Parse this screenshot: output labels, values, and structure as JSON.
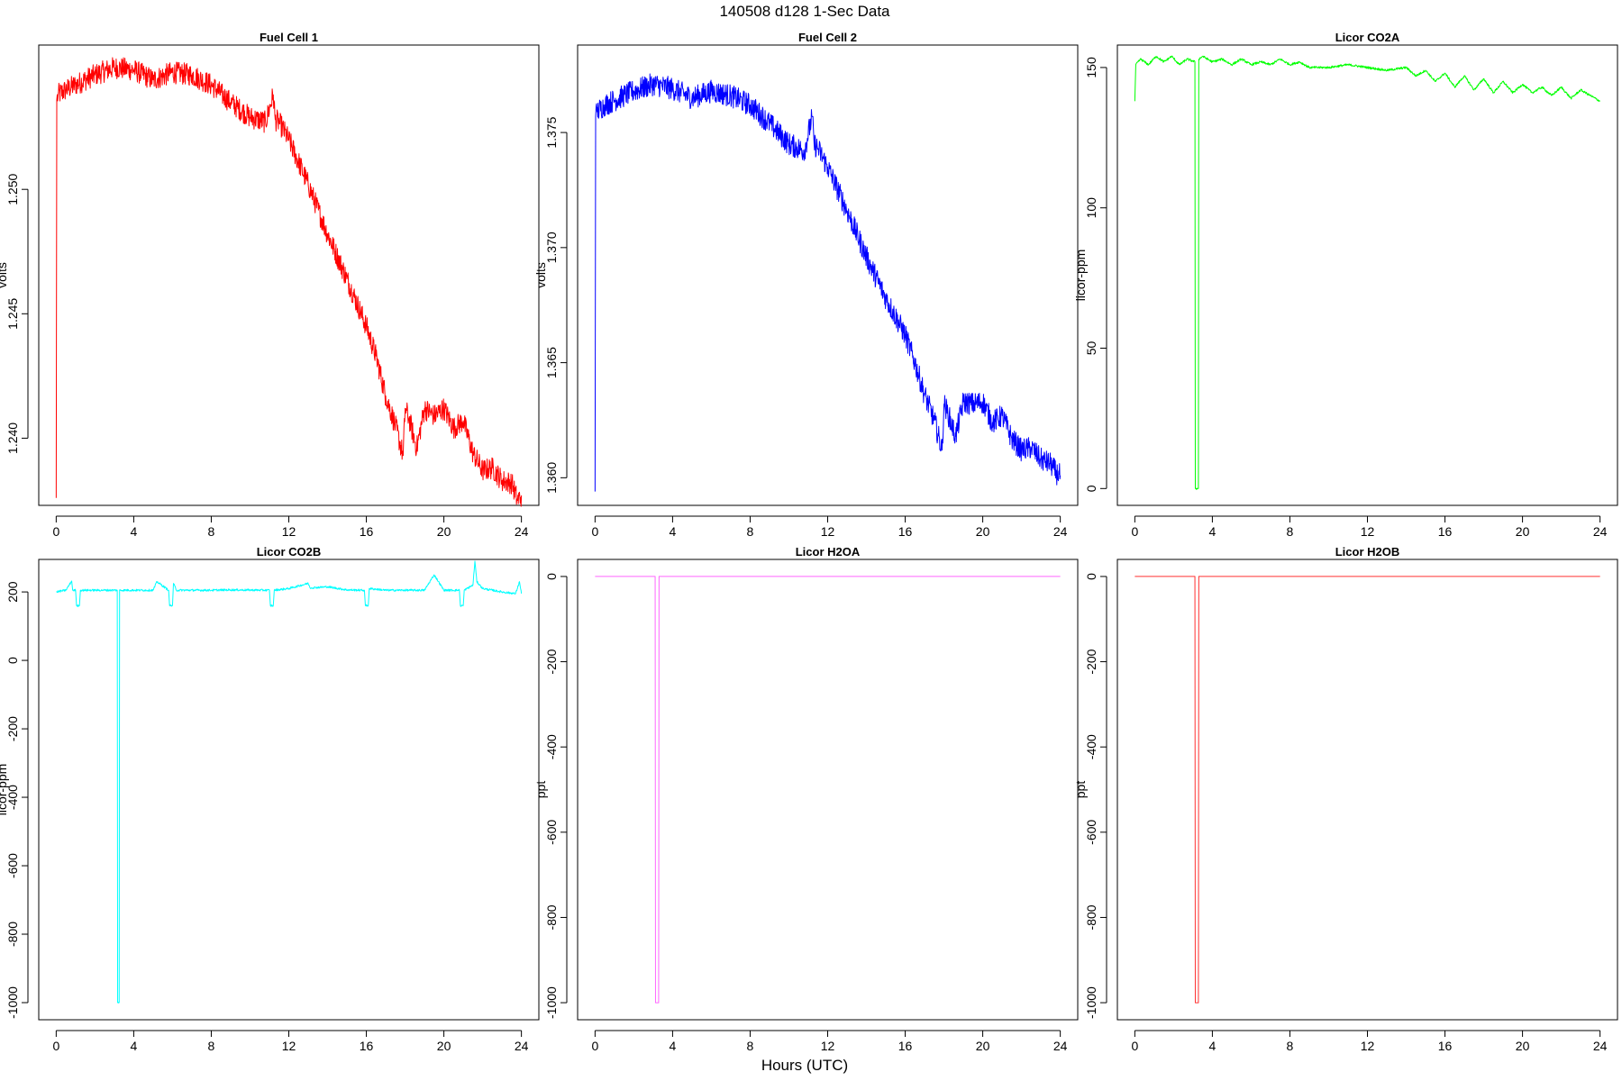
{
  "figure": {
    "title": "140508   d128   1-Sec Data",
    "xlabel": "Hours (UTC)"
  },
  "chart_data": [
    {
      "type": "line",
      "title": "Fuel Cell 1",
      "xlabel": "",
      "ylabel": "volts",
      "color": "#ff0000",
      "xlim": [
        -0.9,
        24.9
      ],
      "ylim": [
        1.2373,
        1.2558
      ],
      "xticks": [
        0,
        4,
        8,
        12,
        16,
        20,
        24
      ],
      "xtick_labels": [
        "0",
        "4",
        "8",
        "12",
        "16",
        "20",
        "24"
      ],
      "yticks": [
        1.24,
        1.245,
        1.25
      ],
      "ytick_labels": [
        "1.240",
        "1.245",
        "1.250"
      ],
      "series": [
        {
          "x": [
            0,
            0.03,
            0.1,
            0.5,
            1,
            2,
            3,
            4,
            5,
            6,
            7,
            8,
            9,
            10,
            10.8,
            11.2,
            11.3,
            11.5,
            12,
            13,
            14,
            15,
            16,
            16.5,
            17,
            17.5,
            17.9,
            18,
            18.2,
            18.6,
            19,
            19.5,
            20,
            20.5,
            21,
            21.5,
            22,
            22.5,
            23,
            23.5,
            23.8,
            24
          ],
          "y": [
            1.2376,
            1.2536,
            1.2538,
            1.254,
            1.2542,
            1.2546,
            1.2549,
            1.2548,
            1.2544,
            1.2547,
            1.2546,
            1.2542,
            1.2535,
            1.2529,
            1.2527,
            1.2538,
            1.2528,
            1.2527,
            1.252,
            1.2502,
            1.2482,
            1.2464,
            1.2445,
            1.2433,
            1.2417,
            1.2405,
            1.2393,
            1.2412,
            1.2408,
            1.2396,
            1.2412,
            1.2409,
            1.2412,
            1.2404,
            1.2407,
            1.2394,
            1.2387,
            1.2388,
            1.2383,
            1.2382,
            1.2375,
            1.2377
          ],
          "noise": 0.00045
        }
      ]
    },
    {
      "type": "line",
      "title": "Fuel Cell 2",
      "xlabel": "",
      "ylabel": "volts",
      "color": "#0000ff",
      "xlim": [
        -0.9,
        24.9
      ],
      "ylim": [
        1.3588,
        1.3788
      ],
      "xticks": [
        0,
        4,
        8,
        12,
        16,
        20,
        24
      ],
      "xtick_labels": [
        "0",
        "4",
        "8",
        "12",
        "16",
        "20",
        "24"
      ],
      "yticks": [
        1.36,
        1.365,
        1.37,
        1.375
      ],
      "ytick_labels": [
        "1.360",
        "1.365",
        "1.370",
        "1.375"
      ],
      "series": [
        {
          "x": [
            0,
            0.03,
            0.1,
            0.5,
            1,
            2,
            3,
            4,
            5,
            6,
            7,
            8,
            9,
            10,
            10.8,
            11.2,
            11.3,
            11.5,
            12,
            13,
            14,
            15,
            16,
            16.5,
            17,
            17.5,
            17.9,
            18,
            18.2,
            18.6,
            19,
            19.5,
            20,
            20.5,
            21,
            21.5,
            22,
            22.5,
            23,
            23.5,
            23.8,
            24
          ],
          "y": [
            1.3594,
            1.3757,
            1.3759,
            1.3762,
            1.3764,
            1.3768,
            1.3771,
            1.3769,
            1.3765,
            1.3768,
            1.3766,
            1.3762,
            1.3754,
            1.3745,
            1.3742,
            1.3757,
            1.3745,
            1.3743,
            1.3735,
            1.3716,
            1.3696,
            1.3678,
            1.3662,
            1.365,
            1.3636,
            1.3625,
            1.3612,
            1.3632,
            1.3628,
            1.3618,
            1.3633,
            1.3632,
            1.3633,
            1.3624,
            1.3627,
            1.3617,
            1.3612,
            1.3613,
            1.3608,
            1.3606,
            1.3602,
            1.3601
          ],
          "noise": 0.0005
        }
      ]
    },
    {
      "type": "line",
      "title": "Licor CO2A",
      "xlabel": "",
      "ylabel": "licor-ppm",
      "color": "#00ff00",
      "xlim": [
        -0.9,
        24.9
      ],
      "ylim": [
        -6,
        158
      ],
      "xticks": [
        0,
        4,
        8,
        12,
        16,
        20,
        24
      ],
      "xtick_labels": [
        "0",
        "4",
        "8",
        "12",
        "16",
        "20",
        "24"
      ],
      "yticks": [
        0,
        50,
        100,
        150
      ],
      "ytick_labels": [
        "0",
        "50",
        "100",
        "150"
      ],
      "series": [
        {
          "x": [
            0,
            0.05,
            0.3,
            0.7,
            1.1,
            1.5,
            1.9,
            2.3,
            2.7,
            3.1,
            3.12,
            3.15,
            3.25,
            3.28,
            3.3,
            3.5,
            4,
            4.5,
            5,
            5.5,
            6,
            6.5,
            7,
            7.5,
            8,
            8.5,
            9,
            10,
            11,
            12,
            13,
            14,
            14.5,
            15,
            15.5,
            16,
            16.5,
            17,
            17.5,
            18,
            18.5,
            19,
            19.5,
            20,
            20.5,
            21,
            21.5,
            22,
            22.5,
            23,
            23.5,
            24
          ],
          "y": [
            138,
            151,
            153,
            151,
            154,
            152,
            154,
            151,
            153,
            152,
            0,
            0,
            0,
            0,
            153,
            154,
            152,
            153,
            151,
            153,
            151,
            152,
            151,
            153,
            151,
            152,
            150,
            150,
            151,
            150,
            149,
            150,
            147,
            149,
            145,
            148,
            143,
            147,
            142,
            146,
            141,
            145,
            141,
            144,
            141,
            143,
            140,
            143,
            139,
            142,
            140,
            138
          ],
          "noise": 0.4
        }
      ]
    },
    {
      "type": "line",
      "title": "Licor CO2B",
      "xlabel": "",
      "ylabel": "licor-ppm",
      "color": "#00ffff",
      "xlim": [
        -0.9,
        24.9
      ],
      "ylim": [
        -1050,
        295
      ],
      "xticks": [
        0,
        4,
        8,
        12,
        16,
        20,
        24
      ],
      "xtick_labels": [
        "0",
        "4",
        "8",
        "12",
        "16",
        "20",
        "24"
      ],
      "yticks": [
        -1000,
        -800,
        -600,
        -400,
        -200,
        0,
        200
      ],
      "ytick_labels": [
        "-1000",
        "-800",
        "-600",
        "-400",
        "-200",
        "0",
        "200"
      ],
      "series": [
        {
          "x": [
            0,
            0.5,
            0.8,
            0.85,
            1,
            1.05,
            1.2,
            1.25,
            3.15,
            3.17,
            3.25,
            3.27,
            5,
            5.2,
            5.8,
            5.85,
            6,
            6.05,
            6.2,
            8,
            9,
            11,
            11.05,
            11.2,
            11.25,
            12,
            13,
            13.1,
            14,
            15,
            15.9,
            15.95,
            16.1,
            16.15,
            17,
            19,
            19.5,
            20,
            20.8,
            20.85,
            21,
            21.05,
            21.5,
            21.6,
            21.7,
            22,
            23,
            23.7,
            23.9,
            24
          ],
          "y": [
            200,
            205,
            232,
            205,
            205,
            160,
            160,
            205,
            205,
            -1000,
            -1000,
            205,
            205,
            230,
            205,
            160,
            160,
            225,
            205,
            205,
            206,
            205,
            160,
            160,
            205,
            210,
            225,
            212,
            215,
            206,
            205,
            160,
            160,
            210,
            205,
            205,
            250,
            205,
            205,
            160,
            160,
            205,
            220,
            290,
            230,
            210,
            200,
            195,
            230,
            195
          ],
          "noise": 3
        }
      ]
    },
    {
      "type": "line",
      "title": "Licor H2OA",
      "xlabel": "",
      "ylabel": "ppt",
      "color": "#ff66ff",
      "xlim": [
        -0.9,
        24.9
      ],
      "ylim": [
        -1040,
        40
      ],
      "xticks": [
        0,
        4,
        8,
        12,
        16,
        20,
        24
      ],
      "xtick_labels": [
        "0",
        "4",
        "8",
        "12",
        "16",
        "20",
        "24"
      ],
      "yticks": [
        -1000,
        -800,
        -600,
        -400,
        -200,
        0
      ],
      "ytick_labels": [
        "-1000",
        "-800",
        "-600",
        "-400",
        "-200",
        "0"
      ],
      "series": [
        {
          "x": [
            0,
            3.1,
            3.12,
            3.15,
            3.25,
            3.28,
            3.3,
            24
          ],
          "y": [
            0,
            0,
            -1000,
            -1000,
            -1000,
            -1000,
            0,
            0
          ],
          "noise": 0
        }
      ]
    },
    {
      "type": "line",
      "title": "Licor H2OB",
      "xlabel": "",
      "ylabel": "ppt",
      "color": "#ff3030",
      "xlim": [
        -0.9,
        24.9
      ],
      "ylim": [
        -1040,
        40
      ],
      "xticks": [
        0,
        4,
        8,
        12,
        16,
        20,
        24
      ],
      "xtick_labels": [
        "0",
        "4",
        "8",
        "12",
        "16",
        "20",
        "24"
      ],
      "yticks": [
        -1000,
        -800,
        -600,
        -400,
        -200,
        0
      ],
      "ytick_labels": [
        "-1000",
        "-800",
        "-600",
        "-400",
        "-200",
        "0"
      ],
      "series": [
        {
          "x": [
            0,
            3.1,
            3.12,
            3.15,
            3.25,
            3.28,
            3.3,
            24
          ],
          "y": [
            0,
            0,
            -1000,
            -1000,
            -1000,
            -1000,
            0,
            0
          ],
          "noise": 0
        }
      ]
    }
  ]
}
